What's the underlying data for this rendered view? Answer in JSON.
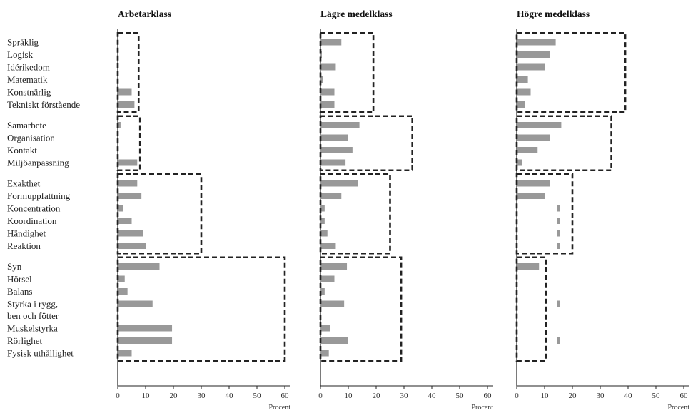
{
  "chart_data": {
    "type": "bar",
    "orientation": "horizontal",
    "xlim": [
      0,
      60
    ],
    "xticks": [
      0,
      10,
      20,
      30,
      40,
      50,
      60
    ],
    "xunit": "Procent",
    "categories": [
      "Språklig",
      "Logisk",
      "Idérikedom",
      "Matematik",
      "Konstnärlig",
      "Tekniskt förstående",
      "Samarbete",
      "Organisation",
      "Kontakt",
      "Miljöanpassning",
      "Exakthet",
      "Formuppfattning",
      "Koncentration",
      "Koordination",
      "Händighet",
      "Reaktion",
      "Syn",
      "Hörsel",
      "Balans",
      "Styrka i rygg, ben och fötter",
      "Muskelstyrka",
      "Rörlighet",
      "Fysisk uthållighet"
    ],
    "category_lines": [
      [
        "Språklig"
      ],
      [
        "Logisk"
      ],
      [
        "Idérikedom"
      ],
      [
        "Matematik"
      ],
      [
        "Konstnärlig"
      ],
      [
        "Tekniskt förstående"
      ],
      [
        "Samarbete"
      ],
      [
        "Organisation"
      ],
      [
        "Kontakt"
      ],
      [
        "Miljöanpassning"
      ],
      [
        "Exakthet"
      ],
      [
        "Formuppfattning"
      ],
      [
        "Koncentration"
      ],
      [
        "Koordination"
      ],
      [
        "Händighet"
      ],
      [
        "Reaktion"
      ],
      [
        "Syn"
      ],
      [
        "Hörsel"
      ],
      [
        "Balans"
      ],
      [
        "Styrka i rygg,",
        "ben och fötter"
      ],
      [
        "Muskelstyrka"
      ],
      [
        "Rörlighet"
      ],
      [
        "Fysisk uthållighet"
      ]
    ],
    "groups": [
      {
        "categories": [
          "Språklig",
          "Logisk",
          "Idérikedom",
          "Matematik",
          "Konstnärlig",
          "Tekniskt förstående"
        ]
      },
      {
        "categories": [
          "Samarbete",
          "Organisation",
          "Kontakt",
          "Miljöanpassning"
        ]
      },
      {
        "categories": [
          "Exakthet",
          "Formuppfattning",
          "Koncentration",
          "Koordination",
          "Händighet",
          "Reaktion"
        ]
      },
      {
        "categories": [
          "Syn",
          "Hörsel",
          "Balans",
          "Styrka i rygg, ben och fötter",
          "Muskelstyrka",
          "Rörlighet",
          "Fysisk uthållighet"
        ]
      }
    ],
    "series": [
      {
        "name": "Arbetarklass",
        "values": [
          0,
          0,
          0,
          0,
          5,
          6,
          1,
          0,
          0,
          7,
          7,
          8.5,
          2,
          5,
          9,
          10,
          15,
          2.5,
          3.5,
          12.5,
          19.5,
          19.5,
          5
        ],
        "group_totals": [
          7.5,
          8,
          30,
          60
        ]
      },
      {
        "name": "Lägre medelklass",
        "values": [
          7.5,
          0.5,
          5.5,
          1,
          5,
          5,
          14,
          10,
          11.5,
          9,
          13.5,
          7.5,
          1.5,
          1.5,
          2.5,
          5.5,
          9.5,
          5,
          1.5,
          8.5,
          3.5,
          10,
          3
        ],
        "group_totals": [
          19,
          33,
          25,
          29
        ]
      },
      {
        "name": "Högre medelklass",
        "values": [
          14,
          12,
          10,
          4,
          5,
          3,
          16,
          12,
          7.5,
          2,
          12,
          10,
          0,
          0,
          0,
          0,
          8,
          0,
          0,
          0,
          0,
          0,
          0
        ],
        "markers": [
          0,
          0,
          0,
          0,
          0,
          0,
          0,
          0,
          0,
          0,
          0,
          0,
          15,
          15,
          15,
          15,
          0,
          0,
          0,
          15,
          0,
          15,
          0
        ],
        "group_totals": [
          39,
          34,
          20,
          10.5
        ]
      }
    ],
    "bar_color": "#999999",
    "box_color": "#222222",
    "grid": false
  }
}
